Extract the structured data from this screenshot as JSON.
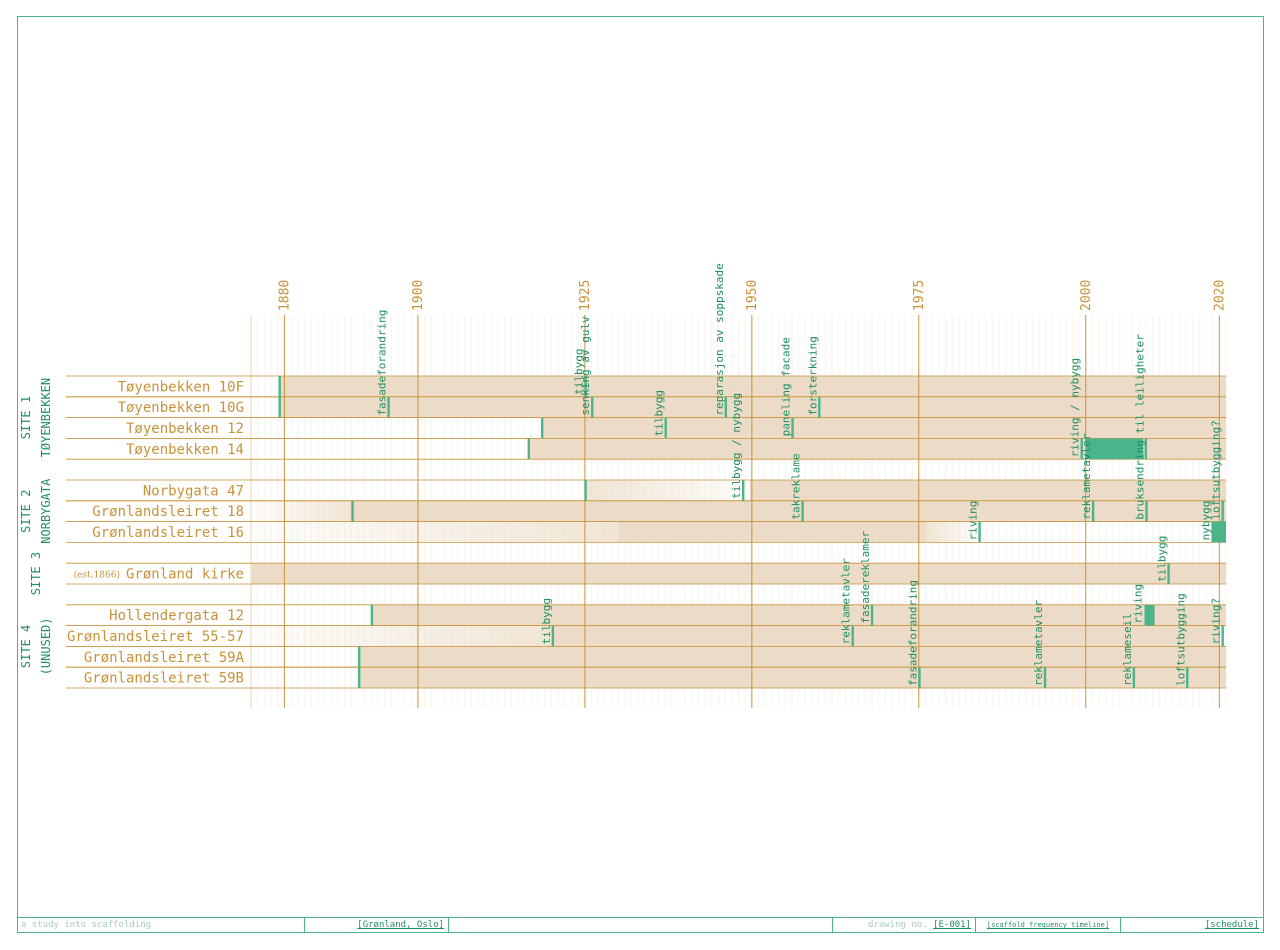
{
  "colors": {
    "accent": "#4cb48a",
    "accent_text": "#1f8f63",
    "timeline": "#c9923a",
    "bar_fill": "#ecdcc7",
    "scaffold": "#4cb48a"
  },
  "chart_data": {
    "type": "timeline",
    "x_ticks": [
      1880,
      1900,
      1925,
      1950,
      1975,
      2000,
      2020
    ],
    "x_range": [
      1875,
      2021
    ],
    "groups": [
      {
        "label_lines": [
          "SITE 1",
          "TØYENBEKKEN"
        ],
        "rows": [
          0,
          3
        ]
      },
      {
        "label_lines": [
          "SITE 2",
          "NORBYGATA"
        ],
        "rows": [
          5,
          7
        ]
      },
      {
        "label_lines": [
          "SITE 3"
        ],
        "rows": [
          9,
          9
        ]
      },
      {
        "label_lines": [
          "SITE 4",
          "(UNUSED)"
        ],
        "rows": [
          11,
          14
        ]
      }
    ],
    "rows": [
      {
        "name": "Tøyenbekken 10F",
        "bars": [
          [
            1879.2,
            2021
          ]
        ],
        "fade": []
      },
      {
        "name": "Tøyenbekken 10G",
        "bars": [
          [
            1879.2,
            2021
          ]
        ],
        "fade": []
      },
      {
        "name": "Tøyenbekken 12",
        "bars": [
          [
            1918.5,
            2021
          ]
        ],
        "fade": []
      },
      {
        "name": "Tøyenbekken 14",
        "bars": [
          [
            1916.5,
            2021
          ]
        ],
        "fade": []
      },
      null,
      {
        "name": "Norbygata 47",
        "bars": [
          [
            1949.7,
            2021
          ]
        ],
        "fade": [
          [
            1925,
            1949.7
          ]
        ]
      },
      {
        "name": "Grønlandsleiret 18",
        "bars": [
          [
            1890,
            2021
          ]
        ],
        "fade": [
          [
            1875,
            1890
          ]
        ]
      },
      {
        "name": "Grønlandsleiret 16",
        "bars": [
          [
            1930,
            1976.2
          ]
        ],
        "fade": [
          [
            1875,
            1930
          ],
          [
            1976.2,
            1984
          ]
        ]
      },
      null,
      {
        "name": "Grønland kirke",
        "prefix": "(est.1866)",
        "bars": [
          [
            1875,
            2021
          ]
        ],
        "fade": []
      },
      null,
      {
        "name": "Hollendergata 12",
        "bars": [
          [
            1893,
            2021
          ]
        ],
        "fade": []
      },
      {
        "name": "Grønlandsleiret 55-57",
        "bars": [
          [
            1920,
            2020
          ]
        ],
        "fade": [
          [
            1875,
            1920
          ]
        ]
      },
      {
        "name": "Grønlandsleiret 59A",
        "bars": [
          [
            1891,
            2021
          ]
        ],
        "fade": []
      },
      {
        "name": "Grønlandsleiret 59B",
        "bars": [
          [
            1891,
            2021
          ]
        ],
        "fade": []
      }
    ],
    "events": [
      {
        "row": 0,
        "year": 1879.3,
        "label": ""
      },
      {
        "row": 1,
        "year": 1879.3,
        "label": ""
      },
      {
        "row": 1,
        "year": 1895.6,
        "label": "fasadeforandring"
      },
      {
        "row": 0,
        "year": 1925.1,
        "label": "tilbygg"
      },
      {
        "row": 1,
        "year": 1926.1,
        "label": "senking av gulv"
      },
      {
        "row": 2,
        "year": 1918.6,
        "label": ""
      },
      {
        "row": 2,
        "year": 1937.1,
        "label": "tilbygg"
      },
      {
        "row": 1,
        "year": 1946.1,
        "label": "reparasjon av soppskade"
      },
      {
        "row": 2,
        "year": 1956.1,
        "label": "paneling facade"
      },
      {
        "row": 1,
        "year": 1960.1,
        "label": "forsterkning"
      },
      {
        "row": 3,
        "year": 1916.6,
        "label": ""
      },
      {
        "row": 3,
        "year": 1999.4,
        "label": "riving / nybygg"
      },
      {
        "row": 3,
        "year": 2000.0,
        "year_end": 2008.6,
        "label": ""
      },
      {
        "row": 3,
        "year": 2009.0,
        "label": ""
      },
      {
        "row": 5,
        "year": 1925.1,
        "label": ""
      },
      {
        "row": 5,
        "year": 1948.7,
        "label": "tilbygg / nybygg"
      },
      {
        "row": 6,
        "year": 1890.2,
        "label": ""
      },
      {
        "row": 6,
        "year": 1957.6,
        "label": "takreklame"
      },
      {
        "row": 6,
        "year": 2001.1,
        "label": "reklametavler"
      },
      {
        "row": 6,
        "year": 2009.1,
        "label": "bruksendring til leiligheter"
      },
      {
        "row": 6,
        "year": 2020.5,
        "label": "loftsutbygging?"
      },
      {
        "row": 7,
        "year": 1984.1,
        "label": "riving"
      },
      {
        "row": 7,
        "year": 2019.0,
        "label": "nybygg"
      },
      {
        "row": 7,
        "year": 2019.0,
        "year_end": 2021,
        "label": ""
      },
      {
        "row": 9,
        "year": 2012.4,
        "label": "tilbygg"
      },
      {
        "row": 11,
        "year": 1893.1,
        "label": ""
      },
      {
        "row": 11,
        "year": 1968.0,
        "label": "fasadereklamer"
      },
      {
        "row": 11,
        "year": 2008.8,
        "year_end": 2010.3,
        "label": "riving"
      },
      {
        "row": 12,
        "year": 1920.2,
        "label": "tilbygg"
      },
      {
        "row": 12,
        "year": 1965.1,
        "label": "reklametavler"
      },
      {
        "row": 12,
        "year": 2020.5,
        "label": "riving?"
      },
      {
        "row": 13,
        "year": 1891.2,
        "label": ""
      },
      {
        "row": 14,
        "year": 1891.2,
        "label": ""
      },
      {
        "row": 14,
        "year": 1975.1,
        "label": "fasadeforandring"
      },
      {
        "row": 14,
        "year": 1993.9,
        "label": "reklametavler"
      },
      {
        "row": 14,
        "year": 2007.2,
        "label": "reklameseil"
      },
      {
        "row": 14,
        "year": 2015.2,
        "label": "loftsutbygging"
      }
    ]
  },
  "titleblock": {
    "project": "a study into scaffolding",
    "location": "[Grønland, Oslo]",
    "drawing_no_label": "drawing no.",
    "drawing_no": "[E-001]",
    "drawing_title": "[scaffold frequency timeline]",
    "sheet": "[schedule]"
  }
}
